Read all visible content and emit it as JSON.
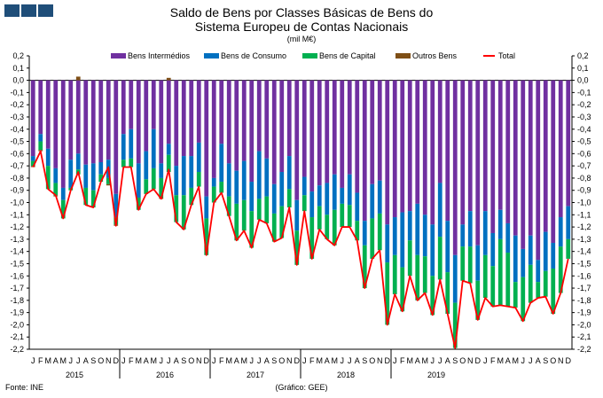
{
  "header": {
    "logo_icon": "ine-logo-icon",
    "title_line1": "Saldo de Bens por Classes Básicas de Bens do",
    "title_line2": "Sistema Europeu de Contas Nacionais",
    "unit": "(mil M€)"
  },
  "footer": {
    "source": "Fonte: INE",
    "credit": "(Gráfico: GEE)"
  },
  "chart_data": {
    "type": "bar",
    "stacked": true,
    "ylim": [
      -2.2,
      0.2
    ],
    "ytick_step": 0.1,
    "grid": false,
    "legend_position": "top",
    "month_labels": [
      "J",
      "F",
      "M",
      "A",
      "M",
      "J",
      "J",
      "A",
      "S",
      "O",
      "N",
      "D"
    ],
    "years": [
      "2015",
      "2016",
      "2017",
      "2018",
      "2019"
    ],
    "series": [
      {
        "name": "Bens Intermédios",
        "color": "#7030a0",
        "values": [
          -0.62,
          -0.44,
          -0.56,
          -0.72,
          -0.88,
          -0.65,
          -0.6,
          -0.69,
          -0.68,
          -0.67,
          -0.65,
          -0.93,
          -0.44,
          -0.4,
          -0.68,
          -0.58,
          -0.4,
          -0.68,
          -0.52,
          -0.7,
          -0.62,
          -0.62,
          -0.51,
          -0.95,
          -0.8,
          -0.52,
          -0.68,
          -0.74,
          -0.66,
          -0.83,
          -0.58,
          -0.64,
          -0.85,
          -0.75,
          -0.62,
          -0.98,
          -0.79,
          -0.91,
          -0.86,
          -0.84,
          -0.77,
          -0.88,
          -0.77,
          -0.92,
          -1.15,
          -0.85,
          -0.82,
          -1.18,
          -1.12,
          -1.08,
          -1.07,
          -1.01,
          -1.1,
          -1.18,
          -0.84,
          -1.15,
          -1.43,
          -1.18,
          -1.07,
          -1.35,
          -1.07,
          -1.25,
          -1.06,
          -1.17,
          -1.27,
          -1.38,
          -1.27,
          -1.47,
          -1.24,
          -1.33,
          -1.12,
          -1.03
        ]
      },
      {
        "name": "Bens de Consumo",
        "color": "#0070c0",
        "values": [
          -0.04,
          -0.06,
          -0.14,
          -0.12,
          -0.1,
          -0.23,
          -0.13,
          -0.19,
          -0.22,
          -0.1,
          -0.15,
          -0.19,
          -0.21,
          -0.24,
          -0.28,
          -0.23,
          -0.32,
          -0.12,
          -0.09,
          -0.24,
          -0.32,
          -0.26,
          -0.24,
          -0.18,
          -0.07,
          -0.31,
          -0.27,
          -0.27,
          -0.32,
          -0.24,
          -0.39,
          -0.31,
          -0.24,
          -0.28,
          -0.27,
          -0.25,
          -0.15,
          -0.21,
          -0.17,
          -0.26,
          -0.29,
          -0.13,
          -0.25,
          -0.23,
          -0.2,
          -0.28,
          -0.27,
          -0.31,
          -0.31,
          -0.45,
          -0.24,
          -0.42,
          -0.34,
          -0.42,
          -0.44,
          -0.42,
          -0.39,
          -0.18,
          -0.29,
          -0.29,
          -0.36,
          -0.27,
          -0.24,
          -0.24,
          -0.38,
          -0.23,
          -0.24,
          -0.18,
          -0.32,
          -0.21,
          -0.24,
          -0.27
        ]
      },
      {
        "name": "Bens de Capital",
        "color": "#00b050",
        "values": [
          -0.04,
          -0.07,
          -0.19,
          -0.1,
          -0.15,
          -0.02,
          -0.04,
          -0.14,
          -0.14,
          -0.06,
          -0.05,
          -0.06,
          -0.06,
          -0.07,
          -0.1,
          -0.12,
          -0.17,
          -0.16,
          -0.14,
          -0.22,
          -0.28,
          -0.14,
          -0.12,
          -0.3,
          -0.13,
          -0.09,
          -0.16,
          -0.3,
          -0.25,
          -0.3,
          -0.17,
          -0.22,
          -0.23,
          -0.26,
          -0.15,
          -0.28,
          -0.13,
          -0.34,
          -0.19,
          -0.2,
          -0.29,
          -0.19,
          -0.18,
          -0.16,
          -0.35,
          -0.33,
          -0.3,
          -0.51,
          -0.32,
          -0.36,
          -0.29,
          -0.37,
          -0.3,
          -0.32,
          -0.35,
          -0.34,
          -0.37,
          -0.28,
          -0.3,
          -0.32,
          -0.35,
          -0.33,
          -0.54,
          -0.44,
          -0.21,
          -0.36,
          -0.31,
          -0.13,
          -0.21,
          -0.37,
          -0.38,
          -0.16
        ]
      },
      {
        "name": "Outros Bens",
        "color": "#7f4f16",
        "values": [
          -0.01,
          -0.01,
          0.0,
          -0.01,
          0.0,
          0.0,
          0.03,
          0.0,
          0.0,
          0.0,
          -0.01,
          -0.01,
          0.0,
          0.0,
          0.0,
          0.0,
          0.0,
          -0.01,
          0.02,
          0.0,
          0.0,
          0.0,
          0.0,
          0.0,
          0.0,
          0.0,
          0.0,
          0.0,
          0.0,
          0.0,
          0.0,
          0.0,
          0.0,
          0.0,
          0.0,
          0.0,
          0.0,
          0.0,
          0.0,
          0.0,
          0.0,
          0.0,
          0.0,
          0.0,
          0.0,
          0.0,
          0.0,
          0.0,
          0.0,
          0.0,
          0.0,
          0.0,
          0.0,
          0.0,
          0.0,
          0.0,
          0.0,
          0.0,
          0.0,
          0.0,
          0.0,
          0.0,
          0.0,
          0.0,
          0.0,
          0.0,
          0.0,
          0.0,
          0.0,
          0.0,
          0.0,
          0.0
        ]
      },
      {
        "name": "Total",
        "color": "#ff0000",
        "kind": "line",
        "values": [
          -0.71,
          -0.58,
          -0.89,
          -0.94,
          -1.13,
          -0.9,
          -0.75,
          -1.02,
          -1.04,
          -0.83,
          -0.71,
          -1.19,
          -0.71,
          -0.71,
          -1.06,
          -0.93,
          -0.89,
          -0.97,
          -0.73,
          -1.16,
          -1.22,
          -1.02,
          -0.87,
          -1.43,
          -1.0,
          -0.92,
          -1.11,
          -1.31,
          -1.23,
          -1.37,
          -1.14,
          -1.17,
          -1.32,
          -1.29,
          -1.04,
          -1.51,
          -1.07,
          -1.46,
          -1.22,
          -1.3,
          -1.35,
          -1.2,
          -1.2,
          -1.31,
          -1.7,
          -1.46,
          -1.39,
          -2.0,
          -1.75,
          -1.89,
          -1.6,
          -1.8,
          -1.74,
          -1.92,
          -1.63,
          -1.91,
          -2.19,
          -1.64,
          -1.66,
          -1.96,
          -1.78,
          -1.85,
          -1.84,
          -1.85,
          -1.86,
          -1.97,
          -1.82,
          -1.78,
          -1.77,
          -1.91,
          -1.74,
          -1.46
        ]
      }
    ]
  }
}
